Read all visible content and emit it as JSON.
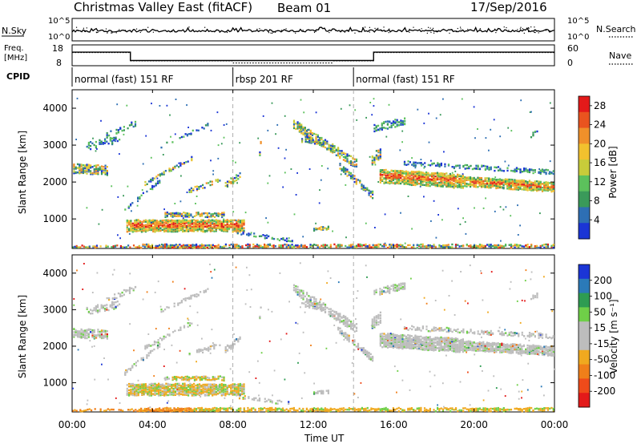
{
  "header": {
    "title": "Christmas Valley East (fitACF)",
    "beam": "Beam 01",
    "date": "17/Sep/2016"
  },
  "left_labels": {
    "nsky": "N.Sky",
    "freq_line1": "Freq.",
    "freq_line2": "[MHz]",
    "cpid": "CPID"
  },
  "right_labels": {
    "nsearch": "N.Search",
    "nave": "Nave"
  },
  "xaxis": {
    "label": "Time UT",
    "ticks": [
      "00:00",
      "04:00",
      "08:00",
      "12:00",
      "16:00",
      "20:00",
      "00:00"
    ]
  },
  "cpid_modes": [
    {
      "label": "normal (fast) 151 RF",
      "start_hr": 0,
      "end_hr": 8
    },
    {
      "label": "rbsp 201 RF",
      "start_hr": 8,
      "end_hr": 14
    },
    {
      "label": "normal (fast) 151 RF",
      "start_hr": 14,
      "end_hr": 24
    }
  ],
  "colors": {
    "power": [
      "#1b35d6",
      "#2e6fb4",
      "#3a9a5a",
      "#5cc15c",
      "#c8cc3a",
      "#f2c12e",
      "#f0902a",
      "#e9541f",
      "#e31a1a"
    ],
    "velocity": [
      "#e31a1a",
      "#ef4b1a",
      "#f07f1a",
      "#f0a91f",
      "#bdbdbd",
      "#bdbdbd",
      "#6fcf48",
      "#2e9c52",
      "#2b7ab8",
      "#1b35d6"
    ]
  },
  "chart_data": [
    {
      "type": "line",
      "name": "noise",
      "left_axis": {
        "label": "N.Sky",
        "ticks": [
          "10^5",
          "10^0"
        ]
      },
      "right_axis": {
        "label": "N.Search",
        "ticks": [
          "10^5",
          "10^0"
        ]
      },
      "xlim": [
        0,
        24
      ]
    },
    {
      "type": "line",
      "name": "frequency-nave",
      "left_axis": {
        "label": "Freq. [MHz]",
        "ticks": [
          "18",
          "8"
        ],
        "ylim": [
          8,
          18
        ]
      },
      "right_axis": {
        "label": "Nave",
        "ticks": [
          "60",
          "0"
        ],
        "ylim": [
          0,
          60
        ]
      },
      "frequency_steps": [
        {
          "x0": 0,
          "x1": 2.9,
          "y": 14.5
        },
        {
          "x0": 2.9,
          "x1": 15.0,
          "y": 10.5
        },
        {
          "x0": 15.0,
          "x1": 24,
          "y": 14.5
        }
      ],
      "nave_steps": [
        {
          "x0": 0,
          "x1": 2.9,
          "y": 38
        },
        {
          "x0": 2.9,
          "x1": 8.0,
          "y": 14
        },
        {
          "x0": 8.0,
          "x1": 13.0,
          "y": 8
        },
        {
          "x0": 13.0,
          "x1": 15.0,
          "y": 14
        },
        {
          "x0": 15.0,
          "x1": 24,
          "y": 38
        }
      ],
      "xlim": [
        0,
        24
      ]
    },
    {
      "type": "heatmap",
      "name": "power",
      "xlabel": "",
      "ylabel": "Slant Range [km]",
      "xlim": [
        0,
        24
      ],
      "ylim": [
        200,
        4500
      ],
      "yticks": [
        "1000",
        "2000",
        "3000",
        "4000"
      ],
      "colorbar": {
        "label": "Power [dB]",
        "ticks": [
          "4",
          "8",
          "12",
          "16",
          "20",
          "24",
          "28"
        ],
        "range": [
          0,
          30
        ]
      }
    },
    {
      "type": "heatmap",
      "name": "velocity",
      "xlabel": "Time UT",
      "ylabel": "Slant Range [km]",
      "xlim": [
        0,
        24
      ],
      "ylim": [
        200,
        4500
      ],
      "yticks": [
        "1000",
        "2000",
        "3000",
        "4000"
      ],
      "colorbar": {
        "label": "Velocity [m s⁻¹]",
        "ticks": [
          "200",
          "100",
          "50",
          "15",
          "-15",
          "-50",
          "-100",
          "-200"
        ]
      }
    }
  ]
}
